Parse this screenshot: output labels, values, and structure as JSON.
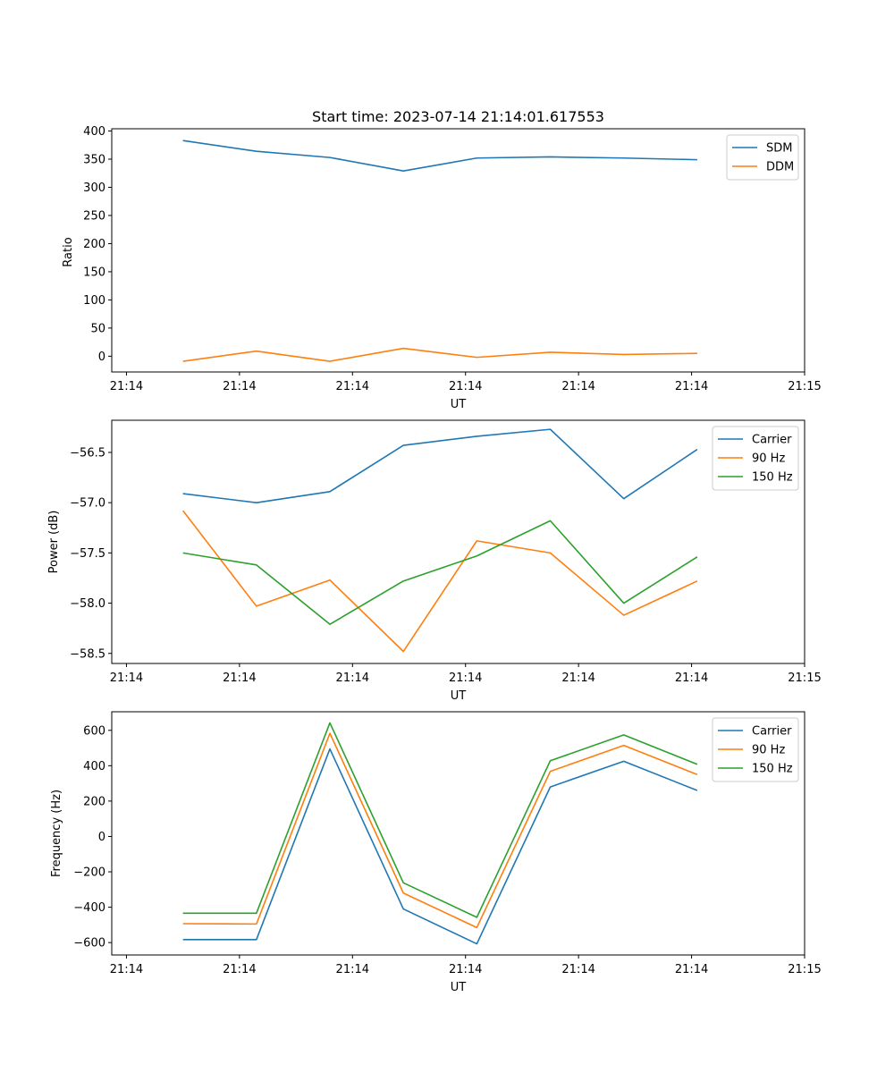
{
  "chart_data": [
    {
      "type": "line",
      "title": "Start time: 2023-07-14 21:14:01.617553",
      "xlabel": "UT",
      "ylabel": "Ratio",
      "x": [
        0.5,
        1.15,
        1.8,
        2.45,
        3.1,
        3.75,
        4.4,
        5.05
      ],
      "x_ticks": [
        0,
        1,
        2,
        3,
        4,
        5,
        6
      ],
      "x_tick_labels": [
        "21:14",
        "21:14",
        "21:14",
        "21:14",
        "21:14",
        "21:14",
        "21:15"
      ],
      "xlim": [
        -0.13,
        6.0
      ],
      "ylim": [
        -28,
        404
      ],
      "y_ticks": [
        0,
        50,
        100,
        150,
        200,
        250,
        300,
        350,
        400
      ],
      "y_tick_labels": [
        "0",
        "50",
        "100",
        "150",
        "200",
        "250",
        "300",
        "350",
        "400"
      ],
      "legend_position": "top-right",
      "series": [
        {
          "name": "SDM",
          "color": "#1f77b4",
          "values": [
            383,
            364,
            353,
            329,
            352,
            354,
            352,
            349
          ]
        },
        {
          "name": "DDM",
          "color": "#ff7f0e",
          "values": [
            -9,
            9,
            -9,
            14,
            -2,
            7,
            3,
            5
          ]
        }
      ]
    },
    {
      "type": "line",
      "xlabel": "UT",
      "ylabel": "Power (dB)",
      "x": [
        0.5,
        1.15,
        1.8,
        2.45,
        3.1,
        3.75,
        4.4,
        5.05
      ],
      "x_ticks": [
        0,
        1,
        2,
        3,
        4,
        5,
        6
      ],
      "x_tick_labels": [
        "21:14",
        "21:14",
        "21:14",
        "21:14",
        "21:14",
        "21:14",
        "21:15"
      ],
      "xlim": [
        -0.13,
        6.0
      ],
      "ylim": [
        -58.6,
        -56.18
      ],
      "y_ticks": [
        -58.5,
        -58.0,
        -57.5,
        -57.0,
        -56.5
      ],
      "y_tick_labels": [
        "−58.5",
        "−58.0",
        "−57.5",
        "−57.0",
        "−56.5"
      ],
      "legend_position": "top-right",
      "series": [
        {
          "name": "Carrier",
          "color": "#1f77b4",
          "values": [
            -56.91,
            -57.0,
            -56.89,
            -56.43,
            -56.34,
            -56.27,
            -56.96,
            -56.47
          ]
        },
        {
          "name": "90 Hz",
          "color": "#ff7f0e",
          "values": [
            -57.08,
            -58.03,
            -57.77,
            -58.48,
            -57.38,
            -57.5,
            -58.12,
            -57.78
          ]
        },
        {
          "name": "150 Hz",
          "color": "#2ca02c",
          "values": [
            -57.5,
            -57.62,
            -58.21,
            -57.78,
            -57.53,
            -57.18,
            -58.0,
            -57.54
          ]
        }
      ]
    },
    {
      "type": "line",
      "xlabel": "UT",
      "ylabel": "Frequency (Hz)",
      "x": [
        0.5,
        1.15,
        1.8,
        2.45,
        3.1,
        3.75,
        4.4,
        5.05
      ],
      "x_ticks": [
        0,
        1,
        2,
        3,
        4,
        5,
        6
      ],
      "x_tick_labels": [
        "21:14",
        "21:14",
        "21:14",
        "21:14",
        "21:14",
        "21:14",
        "21:15"
      ],
      "xlim": [
        -0.13,
        6.0
      ],
      "ylim": [
        -670,
        705
      ],
      "y_ticks": [
        -600,
        -400,
        -200,
        0,
        200,
        400,
        600
      ],
      "y_tick_labels": [
        "−600",
        "−400",
        "−200",
        "0",
        "200",
        "400",
        "600"
      ],
      "legend_position": "top-right",
      "series": [
        {
          "name": "Carrier",
          "color": "#1f77b4",
          "values": [
            -583,
            -583,
            495,
            -410,
            -607,
            280,
            425,
            260
          ]
        },
        {
          "name": "90 Hz",
          "color": "#ff7f0e",
          "values": [
            -493,
            -495,
            583,
            -320,
            -515,
            368,
            515,
            350
          ]
        },
        {
          "name": "150 Hz",
          "color": "#2ca02c",
          "values": [
            -434,
            -434,
            642,
            -262,
            -457,
            428,
            574,
            408
          ]
        }
      ]
    }
  ]
}
